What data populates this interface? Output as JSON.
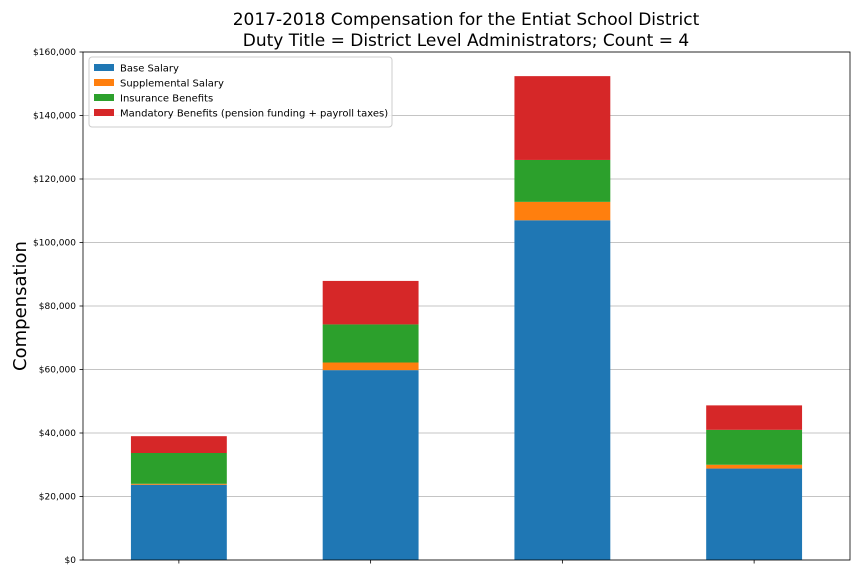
{
  "chart_data": {
    "type": "bar",
    "stacked": true,
    "title": "2017-2018 Compensation for the Entiat School District",
    "subtitle": "Duty Title = District Level Administrators; Count = 4",
    "xlabel": "",
    "ylabel": "Compensation",
    "ylim": [
      0,
      160000
    ],
    "yticks": [
      0,
      20000,
      40000,
      60000,
      80000,
      100000,
      120000,
      140000,
      160000
    ],
    "ytick_labels": [
      "$0",
      "$20,000",
      "$40,000",
      "$60,000",
      "$80,000",
      "$100,000",
      "$120,000",
      "$140,000",
      "$160,000"
    ],
    "grid": "horizontal",
    "legend_position": "top-left",
    "categories": [
      "",
      "",
      "",
      ""
    ],
    "series": [
      {
        "name": "Base Salary",
        "color": "#1f77b4",
        "values": [
          23700,
          59800,
          107000,
          28800
        ]
      },
      {
        "name": "Supplemental Salary",
        "color": "#ff7f0e",
        "values": [
          300,
          2400,
          5800,
          1200
        ]
      },
      {
        "name": "Insurance Benefits",
        "color": "#2ca02c",
        "values": [
          9700,
          12000,
          13200,
          11000
        ]
      },
      {
        "name": "Mandatory Benefits (pension funding + payroll taxes)",
        "color": "#d62728",
        "values": [
          5300,
          13700,
          26400,
          7700
        ]
      }
    ]
  }
}
